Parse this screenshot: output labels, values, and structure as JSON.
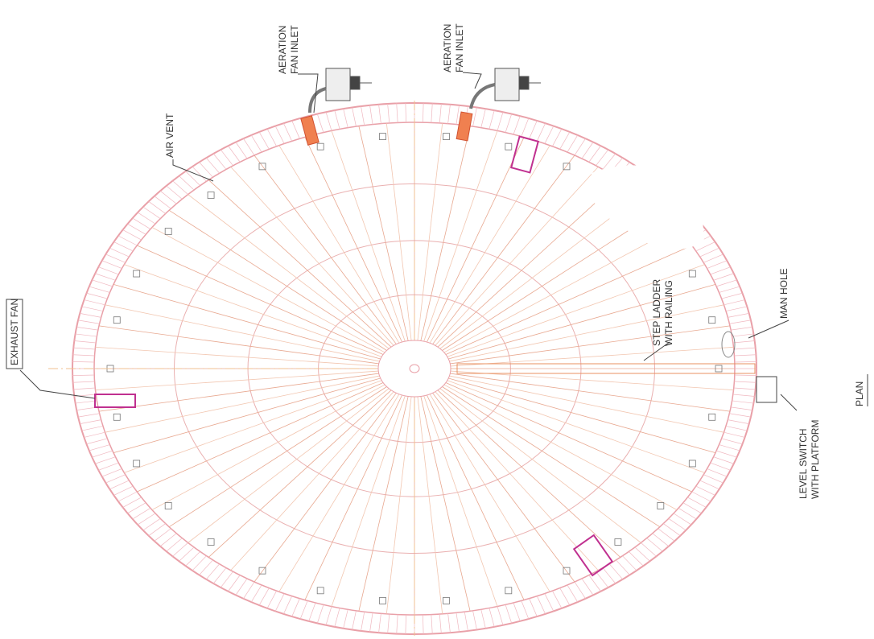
{
  "labels": [
    {
      "lines": [
        "AERATION",
        "FAN INLET"
      ]
    },
    {
      "lines": [
        "AERATION",
        "FAN INLET"
      ]
    },
    {
      "lines": [
        "AIR VENT"
      ]
    },
    {
      "lines": [
        "EXHAUST FAN"
      ]
    },
    {
      "lines": [
        "STEP LADDER",
        "WITH RAILING"
      ]
    },
    {
      "lines": [
        "MAN HOLE"
      ]
    },
    {
      "lines": [
        "LEVEL SWITCH",
        "WITH PLATFORM"
      ]
    },
    {
      "lines": [
        "PLAN"
      ]
    }
  ]
}
